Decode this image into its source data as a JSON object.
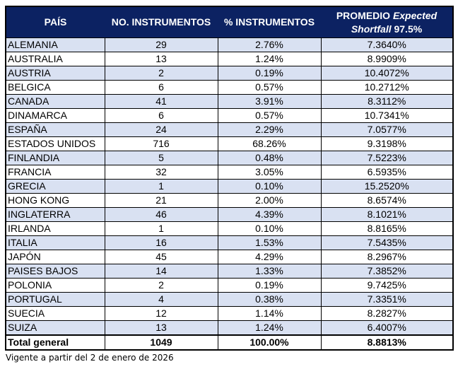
{
  "header": {
    "pais": "PAÍS",
    "no_instrumentos": "NO. INSTRUMENTOS",
    "pct_instrumentos": "% INSTRUMENTOS",
    "promedio_1": "PROMEDIO",
    "promedio_2": "Expected",
    "promedio_3": "Shortfall",
    "promedio_4": "97.5%"
  },
  "rows": [
    {
      "pais": "ALEMANIA",
      "no": "29",
      "pct": "2.76%",
      "es": "7.3640%"
    },
    {
      "pais": "AUSTRALIA",
      "no": "13",
      "pct": "1.24%",
      "es": "8.9909%"
    },
    {
      "pais": "AUSTRIA",
      "no": "2",
      "pct": "0.19%",
      "es": "10.4072%"
    },
    {
      "pais": "BELGICA",
      "no": "6",
      "pct": "0.57%",
      "es": "10.2712%"
    },
    {
      "pais": "CANADA",
      "no": "41",
      "pct": "3.91%",
      "es": "8.3112%"
    },
    {
      "pais": "DINAMARCA",
      "no": "6",
      "pct": "0.57%",
      "es": "10.7341%"
    },
    {
      "pais": "ESPAÑA",
      "no": "24",
      "pct": "2.29%",
      "es": "7.0577%"
    },
    {
      "pais": "ESTADOS UNIDOS",
      "no": "716",
      "pct": "68.26%",
      "es": "9.3198%"
    },
    {
      "pais": "FINLANDIA",
      "no": "5",
      "pct": "0.48%",
      "es": "7.5223%"
    },
    {
      "pais": "FRANCIA",
      "no": "32",
      "pct": "3.05%",
      "es": "6.5935%"
    },
    {
      "pais": "GRECIA",
      "no": "1",
      "pct": "0.10%",
      "es": "15.2520%"
    },
    {
      "pais": "HONG KONG",
      "no": "21",
      "pct": "2.00%",
      "es": "8.6574%"
    },
    {
      "pais": "INGLATERRA",
      "no": "46",
      "pct": "4.39%",
      "es": "8.1021%"
    },
    {
      "pais": "IRLANDA",
      "no": "1",
      "pct": "0.10%",
      "es": "8.8165%"
    },
    {
      "pais": "ITALIA",
      "no": "16",
      "pct": "1.53%",
      "es": "7.5435%"
    },
    {
      "pais": "JAPÓN",
      "no": "45",
      "pct": "4.29%",
      "es": "8.2967%"
    },
    {
      "pais": "PAISES BAJOS",
      "no": "14",
      "pct": "1.33%",
      "es": "7.3852%"
    },
    {
      "pais": "POLONIA",
      "no": "2",
      "pct": "0.19%",
      "es": "9.7425%"
    },
    {
      "pais": "PORTUGAL",
      "no": "4",
      "pct": "0.38%",
      "es": "7.3351%"
    },
    {
      "pais": "SUECIA",
      "no": "12",
      "pct": "1.14%",
      "es": "8.2827%"
    },
    {
      "pais": "SUIZA",
      "no": "13",
      "pct": "1.24%",
      "es": "6.4007%"
    }
  ],
  "total": {
    "pais": "Total general",
    "no": "1049",
    "pct": "100.00%",
    "es": "8.8813%"
  },
  "note": "Vigente a partir del 2 de enero de 2026"
}
